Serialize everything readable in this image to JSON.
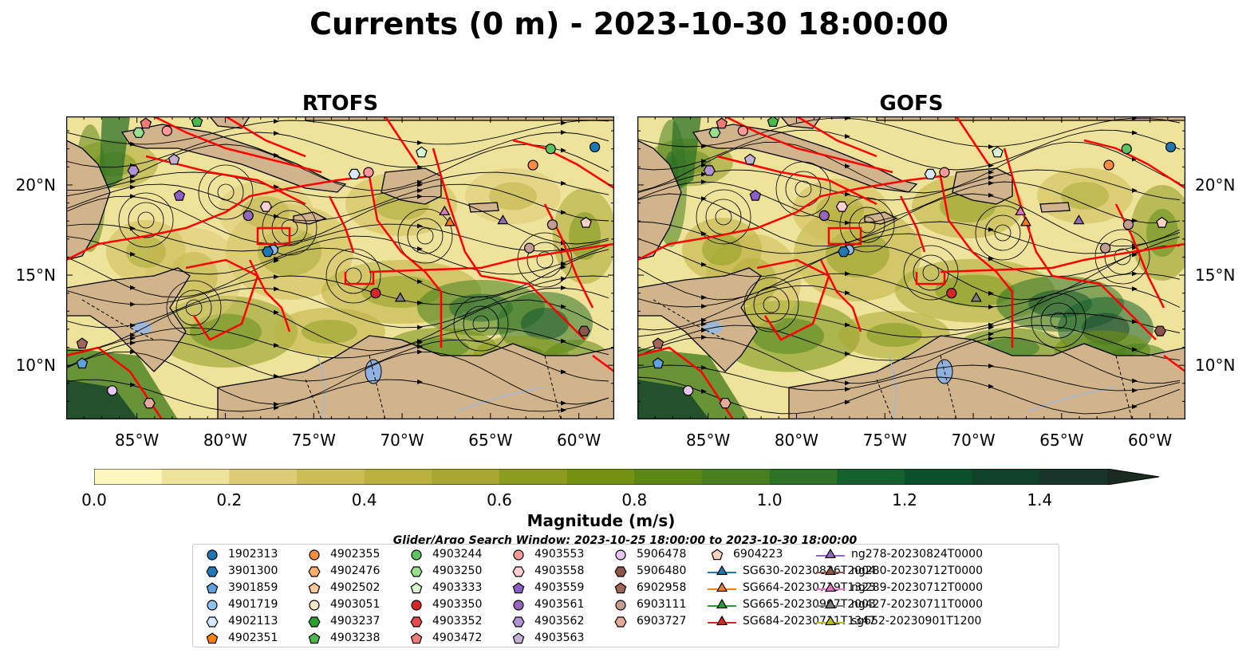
{
  "title": "Currents (0 m) - 2023-10-30 18:00:00",
  "panels": [
    {
      "title": "RTOFS"
    },
    {
      "title": "GOFS"
    }
  ],
  "axes": {
    "lon_ticks": [
      "85°W",
      "80°W",
      "75°W",
      "70°W",
      "65°W",
      "60°W"
    ],
    "lon_values": [
      -85,
      -80,
      -75,
      -70,
      -65,
      -60
    ],
    "lat_ticks": [
      "20°N",
      "15°N",
      "10°N"
    ],
    "lat_values": [
      20,
      15,
      10
    ],
    "lon_range": [
      -89,
      -58
    ],
    "lat_range": [
      7,
      23.8
    ]
  },
  "colorbar": {
    "label": "Magnitude (m/s)",
    "ticks": [
      "0.0",
      "0.2",
      "0.4",
      "0.6",
      "0.8",
      "1.0",
      "1.2",
      "1.4"
    ],
    "range": [
      0,
      1.5
    ],
    "extend": "max",
    "colors": [
      "#fdf6bf",
      "#efe29b",
      "#ddcb76",
      "#cdbd56",
      "#bcb13f",
      "#a7a731",
      "#8c9c1e",
      "#739211",
      "#5b8716",
      "#477f1e",
      "#2d7226",
      "#15612e",
      "#0c5029",
      "#114129",
      "#17352a",
      "#1a2b22"
    ]
  },
  "search_window": "Glider/Argo Search Window: 2023-10-25 18:00:00 to 2023-10-30 18:00:00",
  "land_color": "#d2b48c",
  "track_color": "#ff0000",
  "legend": [
    {
      "id": "1902313",
      "shape": "circle",
      "color": "#1f77b4"
    },
    {
      "id": "3901300",
      "shape": "hexagon",
      "color": "#1f77b4"
    },
    {
      "id": "3901859",
      "shape": "pentagon",
      "color": "#5fa2dd"
    },
    {
      "id": "4901719",
      "shape": "circle",
      "color": "#8ec1ec"
    },
    {
      "id": "4902113",
      "shape": "hexagon",
      "color": "#d6e9fa"
    },
    {
      "id": "4902351",
      "shape": "pentagon",
      "color": "#ff7f0e"
    },
    {
      "id": "4902355",
      "shape": "circle",
      "color": "#fd8d3c"
    },
    {
      "id": "4902476",
      "shape": "hexagon",
      "color": "#fdae6b"
    },
    {
      "id": "4902502",
      "shape": "pentagon",
      "color": "#fdc99a"
    },
    {
      "id": "4903051",
      "shape": "circle",
      "color": "#fee6ce"
    },
    {
      "id": "4903237",
      "shape": "hexagon",
      "color": "#2ca02c"
    },
    {
      "id": "4903238",
      "shape": "pentagon",
      "color": "#4bb84b"
    },
    {
      "id": "4903244",
      "shape": "circle",
      "color": "#5fc35f"
    },
    {
      "id": "4903250",
      "shape": "hexagon",
      "color": "#98df8a"
    },
    {
      "id": "4903333",
      "shape": "pentagon",
      "color": "#d9f5cf"
    },
    {
      "id": "4903350",
      "shape": "circle",
      "color": "#d62728"
    },
    {
      "id": "4903352",
      "shape": "hexagon",
      "color": "#e24a4b"
    },
    {
      "id": "4903472",
      "shape": "pentagon",
      "color": "#f07a7a"
    },
    {
      "id": "4903553",
      "shape": "circle",
      "color": "#ff9896"
    },
    {
      "id": "4903558",
      "shape": "hexagon",
      "color": "#ffd0cf"
    },
    {
      "id": "4903559",
      "shape": "pentagon",
      "color": "#8c5fc6"
    },
    {
      "id": "4903561",
      "shape": "circle",
      "color": "#9467bd"
    },
    {
      "id": "4903562",
      "shape": "hexagon",
      "color": "#b193d6"
    },
    {
      "id": "4903563",
      "shape": "pentagon",
      "color": "#c5b0d5"
    },
    {
      "id": "5906478",
      "shape": "circle",
      "color": "#e6c7f2"
    },
    {
      "id": "5906480",
      "shape": "hexagon",
      "color": "#8c564b"
    },
    {
      "id": "6902958",
      "shape": "pentagon",
      "color": "#a0665a"
    },
    {
      "id": "6903111",
      "shape": "circle",
      "color": "#c49c94"
    },
    {
      "id": "6903727",
      "shape": "hexagon",
      "color": "#e3aa98"
    },
    {
      "id": "6904223",
      "shape": "pentagon",
      "color": "#fbd3c0"
    },
    {
      "id": "SG630-20230826T2004",
      "shape": "triangle-line",
      "color": "#1f77b4"
    },
    {
      "id": "SG664-20230719T1323",
      "shape": "triangle-line",
      "color": "#ff7f0e"
    },
    {
      "id": "SG665-20230907T2003",
      "shape": "triangle-line",
      "color": "#2ca02c"
    },
    {
      "id": "SG684-20230711T1347",
      "shape": "triangle-line",
      "color": "#d62728"
    },
    {
      "id": "ng278-20230824T0000",
      "shape": "triangle-line",
      "color": "#9467bd"
    },
    {
      "id": "ng280-20230712T0000",
      "shape": "triangle-line",
      "color": "#8c564b"
    },
    {
      "id": "ng289-20230712T0000",
      "shape": "triangle-line",
      "color": "#e377c2"
    },
    {
      "id": "ng427-20230711T0000",
      "shape": "triangle-line",
      "color": "#7f7f7f"
    },
    {
      "id": "sg652-20230901T1200",
      "shape": "triangle-line",
      "color": "#bcbd22"
    }
  ],
  "markers": [
    {
      "id": "1902313",
      "lon": -59.1,
      "lat": 22.1
    },
    {
      "id": "4903244",
      "lon": -61.6,
      "lat": 22.0
    },
    {
      "id": "4902355",
      "lon": -62.6,
      "lat": 21.1
    },
    {
      "id": "4903333",
      "lon": -68.9,
      "lat": 21.8
    },
    {
      "id": "4902113",
      "lon": -72.7,
      "lat": 20.6
    },
    {
      "id": "4903553",
      "lon": -71.9,
      "lat": 20.7
    },
    {
      "id": "4903250",
      "lon": -84.9,
      "lat": 22.9
    },
    {
      "id": "4903472",
      "lon": -84.5,
      "lat": 23.4
    },
    {
      "id": "4903553",
      "lon": -83.3,
      "lat": 23.0
    },
    {
      "id": "4903238",
      "lon": -81.6,
      "lat": 23.5
    },
    {
      "id": "4903563",
      "lon": -82.9,
      "lat": 21.4
    },
    {
      "id": "4903562",
      "lon": -85.2,
      "lat": 20.8
    },
    {
      "id": "4903559",
      "lon": -82.6,
      "lat": 19.4
    },
    {
      "id": "4903561",
      "lon": -78.7,
      "lat": 18.3
    },
    {
      "id": "4903558",
      "lon": -77.7,
      "lat": 18.8
    },
    {
      "id": "ng289-20230712T0000",
      "lon": -67.6,
      "lat": 18.5
    },
    {
      "id": "SG664-20230719T1323",
      "lon": -67.3,
      "lat": 17.9
    },
    {
      "id": "ng278-20230824T0000",
      "lon": -64.3,
      "lat": 18.0
    },
    {
      "id": "6903111",
      "lon": -61.5,
      "lat": 17.8
    },
    {
      "id": "6904223",
      "lon": -59.6,
      "lat": 17.9
    },
    {
      "id": "6903111",
      "lon": -62.8,
      "lat": 16.5
    },
    {
      "id": "4901719",
      "lon": -77.3,
      "lat": 16.4
    },
    {
      "id": "3901300",
      "lon": -77.6,
      "lat": 16.3
    },
    {
      "id": "4903350",
      "lon": -71.5,
      "lat": 14.0
    },
    {
      "id": "ng427-20230711T0000",
      "lon": -70.1,
      "lat": 13.7
    },
    {
      "id": "5906480",
      "lon": -59.7,
      "lat": 11.9
    },
    {
      "id": "6902958",
      "lon": -88.1,
      "lat": 11.2
    },
    {
      "id": "3901859",
      "lon": -88.1,
      "lat": 10.1
    },
    {
      "id": "5906478",
      "lon": -86.4,
      "lat": 8.6
    },
    {
      "id": "6903727",
      "lon": -84.3,
      "lat": 7.9
    }
  ]
}
